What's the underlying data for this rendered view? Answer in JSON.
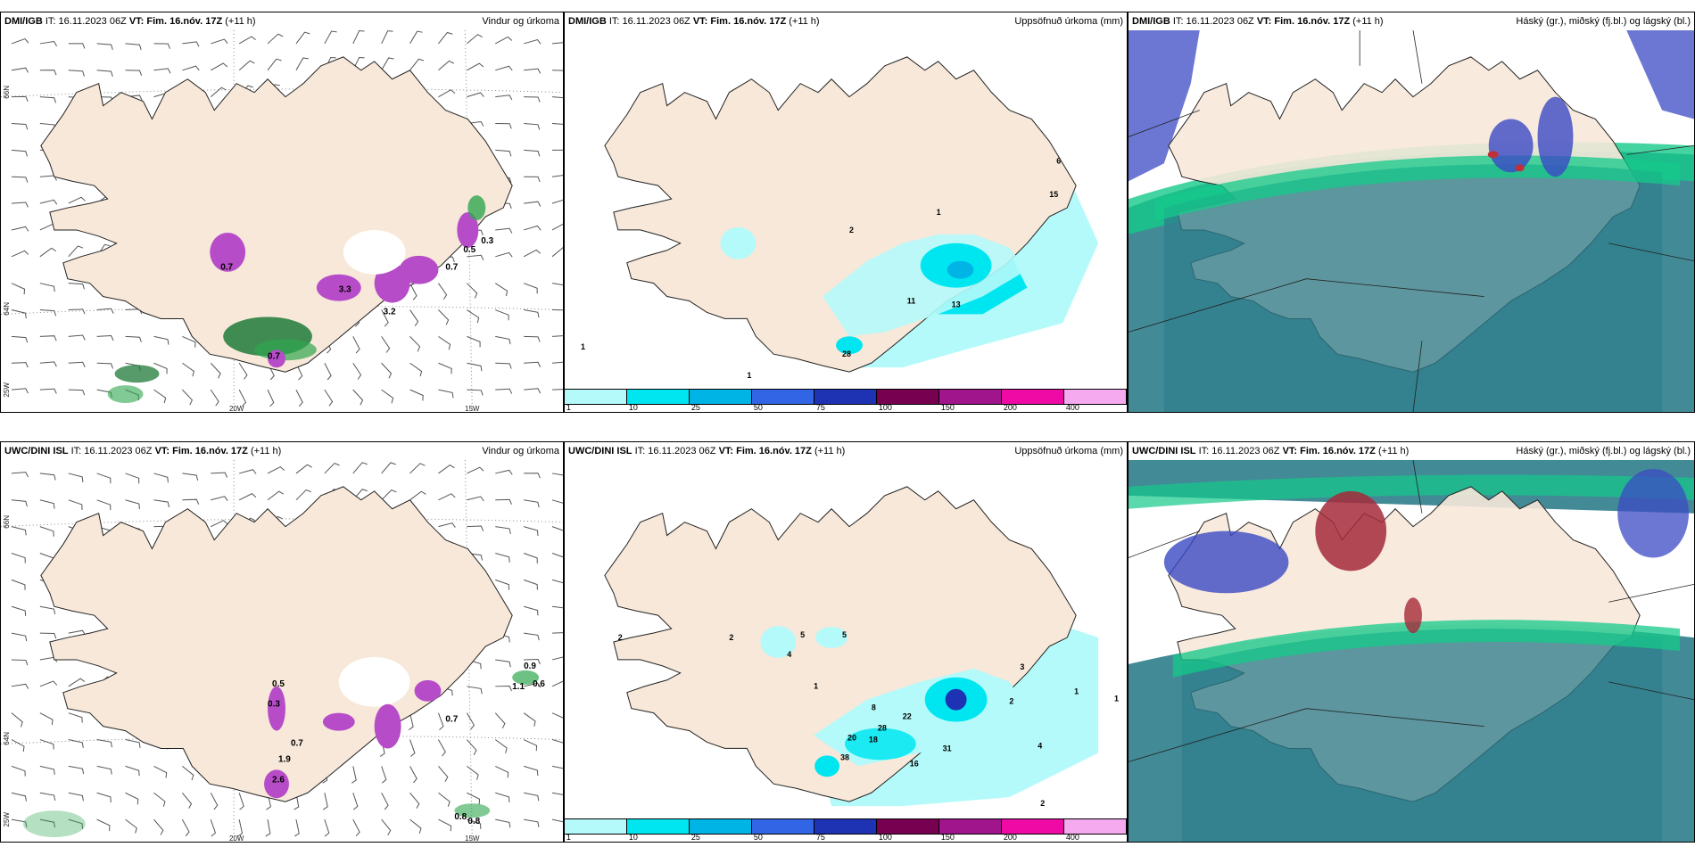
{
  "panels": [
    {
      "source": "DMI/IGB",
      "it_label": "IT:",
      "it": "16.11.2023 06Z",
      "vt_label": "VT:",
      "vt": "Fim. 16.nóv. 17Z",
      "lead": "(+11 h)",
      "title": "Vindur og úrkoma"
    },
    {
      "source": "DMI/IGB",
      "it_label": "IT:",
      "it": "16.11.2023 06Z",
      "vt_label": "VT:",
      "vt": "Fim. 16.nóv. 17Z",
      "lead": "(+11 h)",
      "title": "Uppsöfnuð úrkoma (mm)"
    },
    {
      "source": "DMI/IGB",
      "it_label": "IT:",
      "it": "16.11.2023 06Z",
      "vt_label": "VT:",
      "vt": "Fim. 16.nóv. 17Z",
      "lead": "(+11 h)",
      "title": "Háský (gr.), miðský (fj.bl.) og lágský (bl.)"
    },
    {
      "source": "UWC/DINI ISL",
      "it_label": "IT:",
      "it": "16.11.2023 06Z",
      "vt_label": "VT:",
      "vt": "Fim. 16.nóv. 17Z",
      "lead": "(+11 h)",
      "title": "Vindur og úrkoma"
    },
    {
      "source": "UWC/DINI ISL",
      "it_label": "IT:",
      "it": "16.11.2023 06Z",
      "vt_label": "VT:",
      "vt": "Fim. 16.nóv. 17Z",
      "lead": "(+11 h)",
      "title": "Uppsöfnuð úrkoma (mm)"
    },
    {
      "source": "UWC/DINI ISL",
      "it_label": "IT:",
      "it": "16.11.2023 06Z",
      "vt_label": "VT:",
      "vt": "Fim. 16.nóv. 17Z",
      "lead": "(+11 h)",
      "title": "Háský (gr.), miðský (fj.bl.) og lágský (bl.)"
    }
  ],
  "axis": {
    "lat_66": "66N",
    "lat_64": "64N",
    "lon_25": "25W",
    "lon_20": "20W",
    "lon_15": "15W"
  },
  "colorbar": {
    "labels": [
      "1",
      "10",
      "25",
      "50",
      "75",
      "100",
      "150",
      "200",
      "400"
    ],
    "colors": [
      "#b4fafa",
      "#00e6f0",
      "#00b4e6",
      "#3264e6",
      "#1e32b4",
      "#780050",
      "#a0148c",
      "#f00aa5",
      "#f5aaf0"
    ]
  },
  "wind_precip_labels": {
    "dmi": [
      "0.7",
      "3.3",
      "3.2",
      "0.7",
      "0.5",
      "0.7",
      "0.3"
    ],
    "uwc": [
      "0.7",
      "0.9",
      "0.6",
      "1.1",
      "0.5",
      "0.3",
      "2.6",
      "0.7",
      "1.9",
      "0.8",
      "0.8"
    ]
  },
  "accum_labels": {
    "dmi": [
      "1",
      "2",
      "11",
      "13",
      "28",
      "15",
      "6",
      "1",
      "1"
    ],
    "uwc": [
      "2",
      "2",
      "5",
      "5",
      "4",
      "1",
      "8",
      "22",
      "28",
      "18",
      "20",
      "31",
      "16",
      "38",
      "3",
      "2",
      "4",
      "1",
      "1",
      "2"
    ]
  },
  "colors": {
    "land": "#f7e8d9",
    "coast": "#222222",
    "cloud_low": "#2f7d8c",
    "cloud_mid": "#3b49c4",
    "cloud_high": "#14c98a",
    "precip_light": "#b4fafa",
    "precip_mid": "#00e6f0",
    "wind_green": "#1f7a3a",
    "wind_magenta": "#b74cc9"
  }
}
